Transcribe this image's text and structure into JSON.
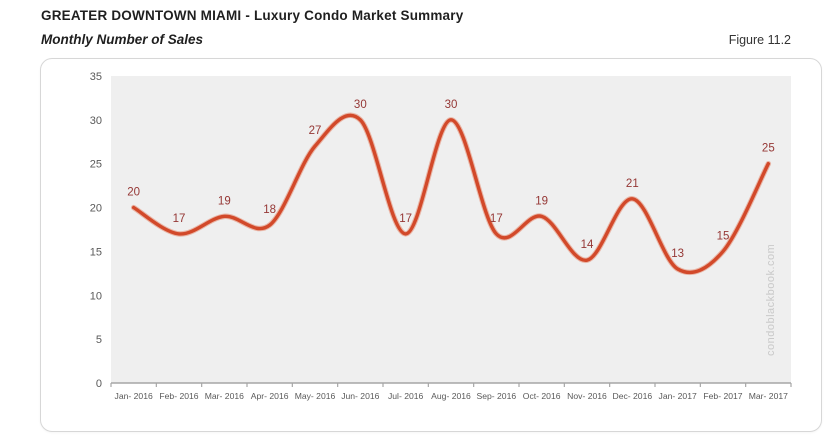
{
  "header": {
    "title": "GREATER DOWNTOWN MIAMI - Luxury Condo Market Summary",
    "subtitle": "Monthly Number of Sales",
    "figure_label": "Figure 11.2"
  },
  "watermark": "condoblackbook.com",
  "chart_data": {
    "type": "line",
    "smooth": true,
    "title": "Monthly Number of Sales",
    "xlabel": "",
    "ylabel": "",
    "categories": [
      "Jan- 2016",
      "Feb- 2016",
      "Mar- 2016",
      "Apr- 2016",
      "May- 2016",
      "Jun- 2016",
      "Jul- 2016",
      "Aug- 2016",
      "Sep- 2016",
      "Oct- 2016",
      "Nov- 2016",
      "Dec- 2016",
      "Jan- 2017",
      "Feb- 2017",
      "Mar- 2017"
    ],
    "values": [
      20,
      17,
      19,
      18,
      27,
      30,
      17,
      30,
      17,
      19,
      14,
      21,
      13,
      15,
      25
    ],
    "ylim": [
      0,
      35
    ],
    "yticks": [
      0,
      5,
      10,
      15,
      20,
      25,
      30,
      35
    ],
    "grid": false,
    "legend": "none",
    "data_labels": true,
    "colors": {
      "line": "#d2492a",
      "line_glow": "#e2714f",
      "data_label": "#953735",
      "axis_text": "#595959",
      "plot_bg": "#efefef",
      "axis_line": "#a6a6a6",
      "watermark": "#c9c9c9"
    }
  }
}
